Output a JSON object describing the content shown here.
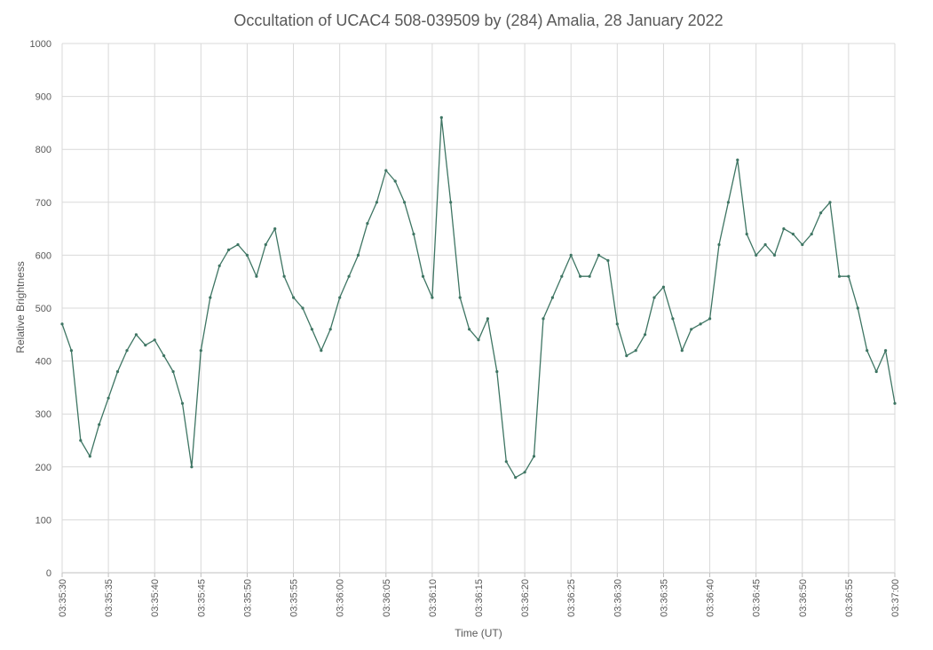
{
  "chart_data": {
    "type": "line",
    "title": "Occultation of UCAC4 508-039509 by (284) Amalia, 28 January 2022",
    "xlabel": "Time (UT)",
    "ylabel": "Relative Brightness",
    "xlim": [
      "03:35:30",
      "03:37:00"
    ],
    "ylim": [
      0,
      1000
    ],
    "x_tick_labels": [
      "03:35:30",
      "03:35:35",
      "03:35:40",
      "03:35:45",
      "03:35:50",
      "03:35:55",
      "03:36:00",
      "03:36:05",
      "03:36:10",
      "03:36:15",
      "03:36:20",
      "03:36:25",
      "03:36:30",
      "03:36:35",
      "03:36:40",
      "03:36:45",
      "03:36:50",
      "03:36:55",
      "03:37:00"
    ],
    "y_tick_labels": [
      "0",
      "100",
      "200",
      "300",
      "400",
      "500",
      "600",
      "700",
      "800",
      "900",
      "1000"
    ],
    "grid": true,
    "legend": "none",
    "series_color": "#3e7563",
    "series": [
      {
        "x": [
          "03:35:30",
          "03:35:31",
          "03:35:32",
          "03:35:33",
          "03:35:34",
          "03:35:35",
          "03:35:36",
          "03:35:37",
          "03:35:38",
          "03:35:39",
          "03:35:40",
          "03:35:41",
          "03:35:42",
          "03:35:43",
          "03:35:44",
          "03:35:45",
          "03:35:46",
          "03:35:47",
          "03:35:48",
          "03:35:49",
          "03:35:50",
          "03:35:51",
          "03:35:52",
          "03:35:53",
          "03:35:54",
          "03:35:55",
          "03:35:56",
          "03:35:57",
          "03:35:58",
          "03:35:59",
          "03:36:00",
          "03:36:01",
          "03:36:02",
          "03:36:03",
          "03:36:04",
          "03:36:05",
          "03:36:06",
          "03:36:07",
          "03:36:08",
          "03:36:09",
          "03:36:10",
          "03:36:11",
          "03:36:12",
          "03:36:13",
          "03:36:14",
          "03:36:15",
          "03:36:16",
          "03:36:17",
          "03:36:18",
          "03:36:19",
          "03:36:20",
          "03:36:21",
          "03:36:22",
          "03:36:23",
          "03:36:24",
          "03:36:25",
          "03:36:26",
          "03:36:27",
          "03:36:28",
          "03:36:29",
          "03:36:30",
          "03:36:31",
          "03:36:32",
          "03:36:33",
          "03:36:34",
          "03:36:35",
          "03:36:36",
          "03:36:37",
          "03:36:38",
          "03:36:39",
          "03:36:40",
          "03:36:41",
          "03:36:42",
          "03:36:43",
          "03:36:44",
          "03:36:45",
          "03:36:46",
          "03:36:47",
          "03:36:48",
          "03:36:49",
          "03:36:50",
          "03:36:51",
          "03:36:52",
          "03:36:53",
          "03:36:54",
          "03:36:55",
          "03:36:56",
          "03:36:57",
          "03:36:58",
          "03:36:59",
          "03:37:00"
        ],
        "values": [
          470,
          420,
          250,
          220,
          280,
          330,
          380,
          420,
          450,
          430,
          440,
          410,
          380,
          320,
          200,
          420,
          520,
          580,
          610,
          620,
          600,
          560,
          620,
          650,
          560,
          520,
          500,
          460,
          420,
          460,
          520,
          560,
          600,
          660,
          700,
          760,
          740,
          700,
          640,
          560,
          520,
          860,
          700,
          520,
          460,
          440,
          480,
          380,
          210,
          180,
          190,
          220,
          480,
          520,
          560,
          600,
          560,
          560,
          600,
          590,
          470,
          410,
          420,
          450,
          520,
          540,
          480,
          420,
          460,
          470,
          480,
          620,
          700,
          780,
          640,
          600,
          620,
          600,
          650,
          640,
          620,
          640,
          680,
          700,
          560,
          560,
          500,
          420,
          380,
          420,
          320
        ]
      }
    ]
  }
}
